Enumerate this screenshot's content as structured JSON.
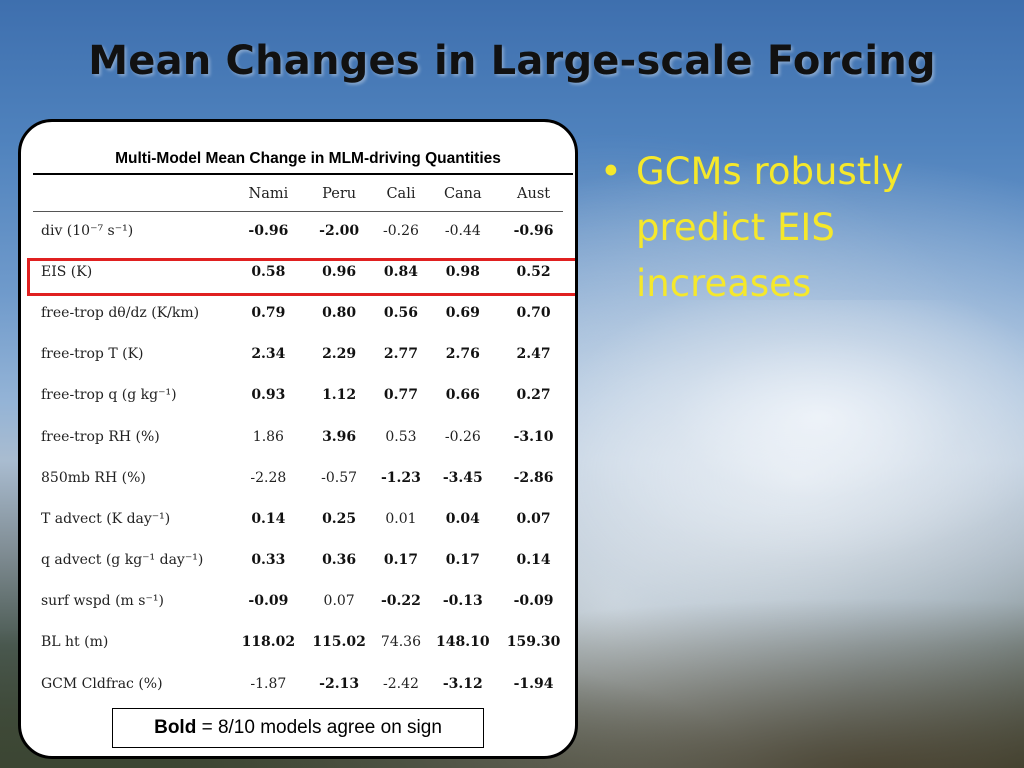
{
  "slide": {
    "title": "Mean Changes in Large-scale Forcing",
    "bullet_symbol": "•",
    "bullet_text": "GCMs robustly predict EIS increases"
  },
  "table": {
    "heading": "Multi-Model Mean Change in MLM-driving Quantities",
    "columns": [
      "Nami",
      "Peru",
      "Cali",
      "Cana",
      "Aust"
    ],
    "rows": [
      {
        "label": "div (10⁻⁷ s⁻¹)",
        "values": [
          "-0.96",
          "-2.00",
          "-0.26",
          "-0.44",
          "-0.96"
        ],
        "bold": [
          true,
          true,
          false,
          false,
          true
        ]
      },
      {
        "label": "EIS (K)",
        "values": [
          "0.58",
          "0.96",
          "0.84",
          "0.98",
          "0.52"
        ],
        "bold": [
          true,
          true,
          true,
          true,
          true
        ]
      },
      {
        "label": "free-trop dθ/dz (K/km)",
        "values": [
          "0.79",
          "0.80",
          "0.56",
          "0.69",
          "0.70"
        ],
        "bold": [
          true,
          true,
          true,
          true,
          true
        ]
      },
      {
        "label": "free-trop T (K)",
        "values": [
          "2.34",
          "2.29",
          "2.77",
          "2.76",
          "2.47"
        ],
        "bold": [
          true,
          true,
          true,
          true,
          true
        ]
      },
      {
        "label": "free-trop q (g kg⁻¹)",
        "values": [
          "0.93",
          "1.12",
          "0.77",
          "0.66",
          "0.27"
        ],
        "bold": [
          true,
          true,
          true,
          true,
          true
        ]
      },
      {
        "label": "free-trop RH (%)",
        "values": [
          "1.86",
          "3.96",
          "0.53",
          "-0.26",
          "-3.10"
        ],
        "bold": [
          false,
          true,
          false,
          false,
          true
        ]
      },
      {
        "label": "850mb RH (%)",
        "values": [
          "-2.28",
          "-0.57",
          "-1.23",
          "-3.45",
          "-2.86"
        ],
        "bold": [
          false,
          false,
          true,
          true,
          true
        ]
      },
      {
        "label": "T advect (K day⁻¹)",
        "values": [
          "0.14",
          "0.25",
          "0.01",
          "0.04",
          "0.07"
        ],
        "bold": [
          true,
          true,
          false,
          true,
          true
        ]
      },
      {
        "label": "q advect (g kg⁻¹ day⁻¹)",
        "values": [
          "0.33",
          "0.36",
          "0.17",
          "0.17",
          "0.14"
        ],
        "bold": [
          true,
          true,
          true,
          true,
          true
        ]
      },
      {
        "label": "surf wspd (m s⁻¹)",
        "values": [
          "-0.09",
          "0.07",
          "-0.22",
          "-0.13",
          "-0.09"
        ],
        "bold": [
          true,
          false,
          true,
          true,
          true
        ]
      },
      {
        "label": "BL ht (m)",
        "values": [
          "118.02",
          "115.02",
          "74.36",
          "148.10",
          "159.30"
        ],
        "bold": [
          true,
          true,
          false,
          true,
          true
        ]
      },
      {
        "label": "GCM Cldfrac (%)",
        "values": [
          "-1.87",
          "-2.13",
          "-2.42",
          "-3.12",
          "-1.94"
        ],
        "bold": [
          false,
          true,
          false,
          true,
          true
        ]
      }
    ],
    "highlighted_row": "EIS (K)",
    "highlight_color": "#e02020"
  },
  "note": {
    "bold_part": "Bold",
    "rest": " = 8/10 models agree on sign"
  },
  "colors": {
    "bullet_text": "#f5e82b",
    "title_text": "#111111"
  }
}
